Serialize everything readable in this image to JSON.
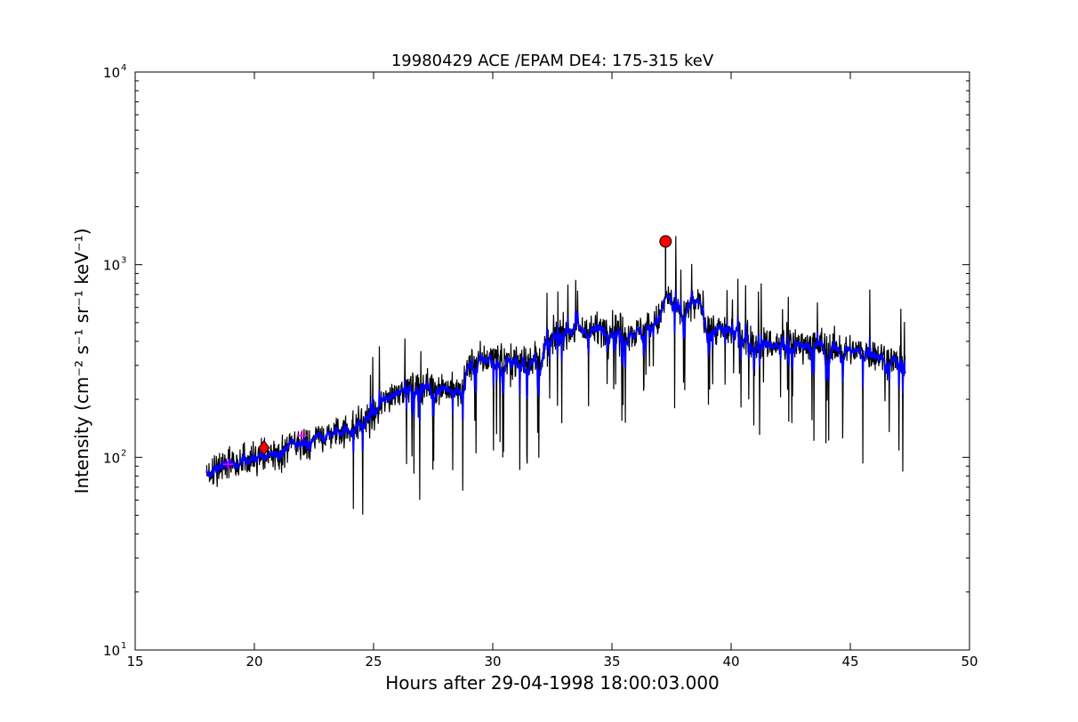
{
  "chart_data": {
    "type": "line",
    "title": "19980429 ACE /EPAM DE4: 175-315 keV",
    "xlabel": "Hours after 29-04-1998 18:00:03.000",
    "ylabel": "Intensity (cm⁻² s⁻¹ sr⁻¹ keV⁻¹)",
    "xlim": [
      15,
      50
    ],
    "ylim": [
      10,
      10000
    ],
    "yscale": "log",
    "grid": false,
    "x_ticks": [
      15,
      20,
      25,
      30,
      35,
      40,
      45,
      50
    ],
    "x_tick_labels": [
      "15",
      "20",
      "25",
      "30",
      "35",
      "40",
      "45",
      "50"
    ],
    "y_ticks": [
      10,
      100,
      1000,
      10000
    ],
    "y_tick_labels": [
      {
        "base": "10",
        "exp": "1"
      },
      {
        "base": "10",
        "exp": "2"
      },
      {
        "base": "10",
        "exp": "3"
      },
      {
        "base": "10",
        "exp": "4"
      }
    ],
    "series": [
      {
        "style": "raw",
        "color": "#000000",
        "x_range": [
          18.0,
          47.3
        ],
        "trend_x": [
          18.0,
          18.5,
          19.0,
          20.0,
          21.0,
          22.0,
          23.0,
          24.0,
          25.0,
          25.5,
          26.0,
          27.0,
          28.0,
          28.7,
          29.0,
          30.0,
          31.0,
          32.0,
          32.8,
          33.5,
          35.0,
          36.0,
          37.0,
          37.3,
          37.8,
          38.3,
          38.7,
          39.0,
          40.0,
          41.0,
          42.0,
          43.0,
          44.0,
          45.0,
          46.0,
          47.3
        ],
        "trend_y": [
          85,
          90,
          92,
          98,
          105,
          118,
          130,
          142,
          160,
          200,
          225,
          235,
          230,
          215,
          300,
          330,
          320,
          330,
          460,
          450,
          470,
          440,
          520,
          700,
          560,
          600,
          640,
          480,
          440,
          400,
          380,
          390,
          375,
          360,
          345,
          300
        ]
      },
      {
        "style": "smoothed",
        "color": "#0000ff",
        "x_range": [
          18.0,
          47.3
        ]
      }
    ],
    "markers": [
      {
        "shape": "cross",
        "color": "#ff00ff",
        "x": 18.9,
        "y": 92
      },
      {
        "shape": "diamond",
        "color": "#ff0000",
        "x": 20.4,
        "y": 112
      },
      {
        "shape": "cross",
        "color": "#ff00ff",
        "x": 22.0,
        "y": 130
      },
      {
        "shape": "circle",
        "color": "#ff0000",
        "x": 37.25,
        "y": 1320
      }
    ]
  }
}
